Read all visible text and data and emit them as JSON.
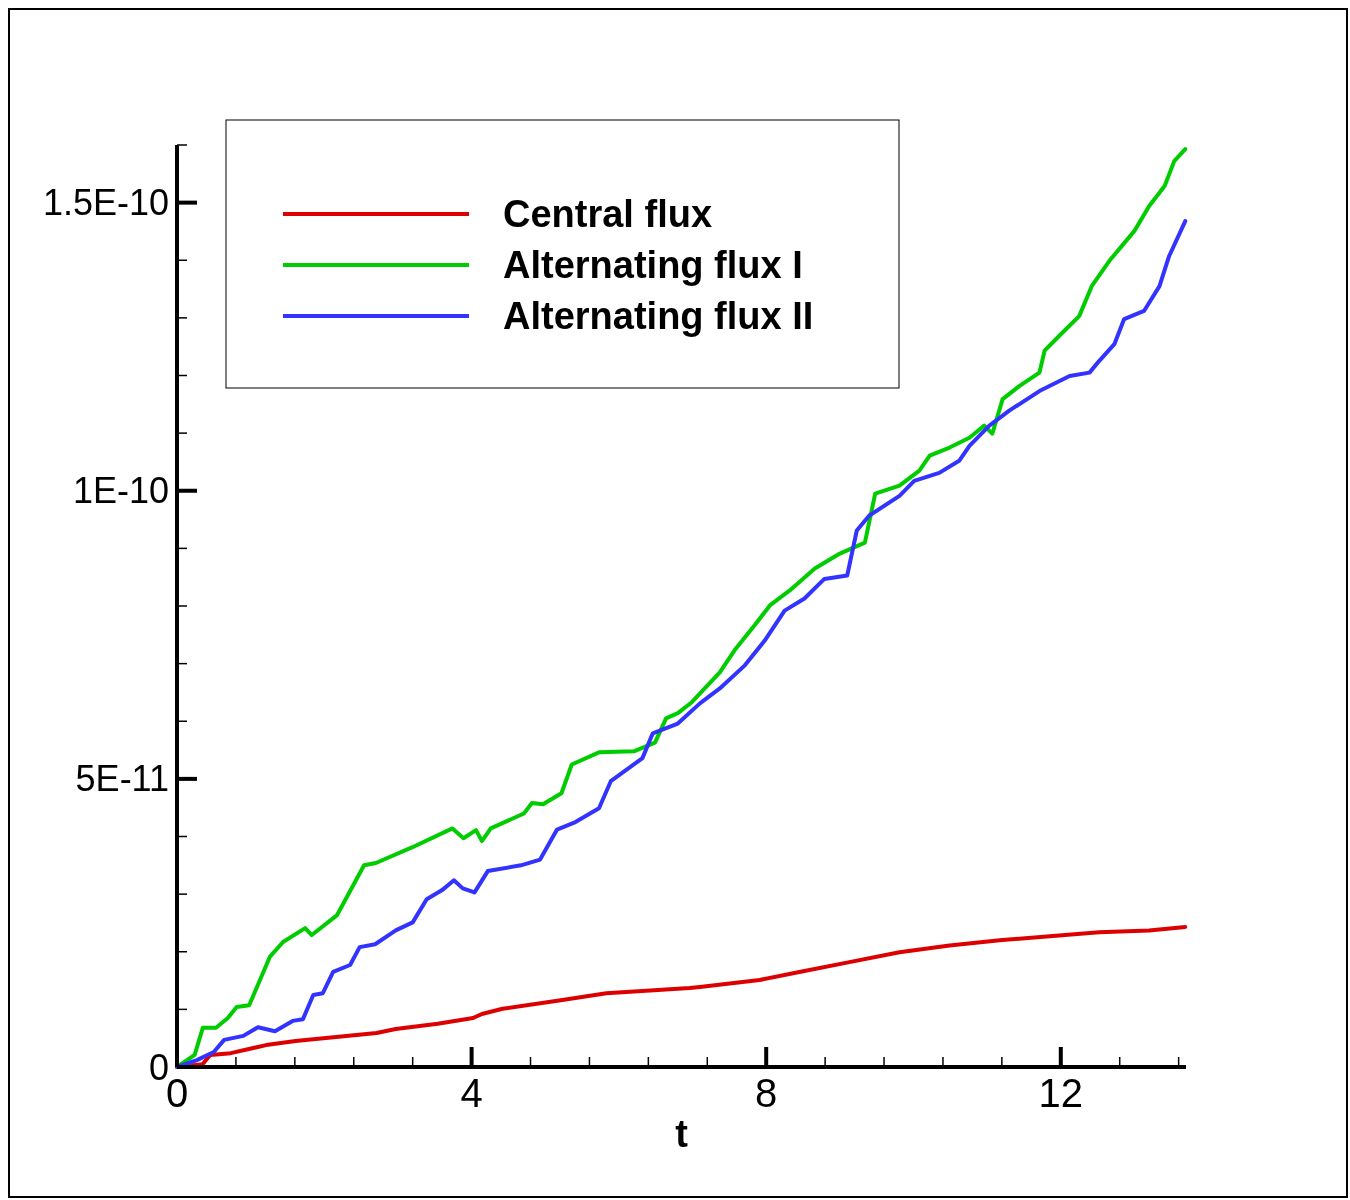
{
  "chart_data": {
    "type": "line",
    "xlabel": "t",
    "legend": "top left",
    "grid": false,
    "line_style": "solid",
    "xlim": [
      0,
      13.7
    ],
    "ylim": [
      0,
      1.6e-10
    ],
    "xticks": [
      0,
      {
        "value": 0.8,
        "label": null
      },
      {
        "value": 1.6,
        "label": null
      },
      {
        "value": 2.4,
        "label": null
      },
      {
        "value": 3.2,
        "label": null
      },
      4,
      {
        "value": 4.8,
        "label": null
      },
      {
        "value": 5.6,
        "label": null
      },
      {
        "value": 6.4,
        "label": null
      },
      {
        "value": 7.2,
        "label": null
      },
      8,
      {
        "value": 8.8,
        "label": null
      },
      {
        "value": 9.6,
        "label": null
      },
      {
        "value": 10.4,
        "label": null
      },
      {
        "value": 11.2,
        "label": null
      },
      12,
      {
        "value": 12.8,
        "label": null
      },
      {
        "value": 13.6,
        "label": null
      }
    ],
    "yticks": [
      0,
      {
        "value": 1e-11,
        "label": null
      },
      {
        "value": 2e-11,
        "label": null
      },
      {
        "value": 3e-11,
        "label": null
      },
      {
        "value": 4e-11,
        "label": null
      },
      {
        "value": 5e-11,
        "label": "5E-11"
      },
      {
        "value": 6e-11,
        "label": null
      },
      {
        "value": 7e-11,
        "label": null
      },
      {
        "value": 8e-11,
        "label": null
      },
      {
        "value": 9e-11,
        "label": null
      },
      {
        "value": 1e-10,
        "label": "1E-10"
      },
      {
        "value": 1.1e-10,
        "label": null
      },
      {
        "value": 1.2e-10,
        "label": null
      },
      {
        "value": 1.3e-10,
        "label": null
      },
      {
        "value": 1.4e-10,
        "label": null
      },
      {
        "value": 1.5e-10,
        "label": "1.5E-10"
      },
      {
        "value": 1.6e-10,
        "label": null
      }
    ],
    "series": [
      {
        "name": "Central flux",
        "color": "#dd0000",
        "x": [
          0,
          0.35,
          0.45,
          0.73,
          1.21,
          1.61,
          2.71,
          2.97,
          3.54,
          4.02,
          4.14,
          4.42,
          5.21,
          5.83,
          6.96,
          7.1,
          7.91,
          8.45,
          9.13,
          9.81,
          10.49,
          11.17,
          11.85,
          12.52,
          13.2,
          13.69
        ],
        "values": [
          0,
          5e-13,
          2.1e-12,
          2.4e-12,
          3.8e-12,
          4.5e-12,
          5.9e-12,
          6.6e-12,
          7.5e-12,
          8.5e-12,
          9.2e-12,
          1.01e-11,
          1.16e-11,
          1.28e-11,
          1.37e-11,
          1.39e-11,
          1.51e-11,
          1.65e-11,
          1.82e-11,
          1.99e-11,
          2.11e-11,
          2.2e-11,
          2.27e-11,
          2.34e-11,
          2.37e-11,
          2.43e-11
        ]
      },
      {
        "name": "Alternating flux I",
        "color": "#00cc00",
        "x": [
          0,
          0.24,
          0.35,
          0.53,
          0.69,
          0.81,
          0.98,
          1.26,
          1.44,
          1.74,
          1.83,
          2.17,
          2.54,
          2.7,
          3.19,
          3.74,
          3.89,
          4.06,
          4.14,
          4.26,
          4.71,
          4.82,
          4.97,
          5.22,
          5.36,
          5.73,
          6.21,
          6.49,
          6.64,
          6.8,
          6.99,
          7.37,
          7.57,
          7.84,
          8.05,
          8.32,
          8.66,
          9.0,
          9.34,
          9.48,
          9.81,
          10.08,
          10.22,
          10.49,
          10.76,
          10.96,
          11.07,
          11.21,
          11.44,
          11.71,
          11.78,
          11.98,
          12.25,
          12.42,
          12.66,
          13.0,
          13.2,
          13.41,
          13.54,
          13.69
        ],
        "values": [
          0,
          2.1e-12,
          6.8e-12,
          6.8e-12,
          8.5e-12,
          1.04e-11,
          1.07e-11,
          1.91e-11,
          2.17e-11,
          2.41e-11,
          2.29e-11,
          2.63e-11,
          3.5e-11,
          3.54e-11,
          3.81e-11,
          4.14e-11,
          3.97e-11,
          4.11e-11,
          3.92e-11,
          4.14e-11,
          4.4e-11,
          4.58e-11,
          4.56e-11,
          4.75e-11,
          5.25e-11,
          5.46e-11,
          5.48e-11,
          5.63e-11,
          6.05e-11,
          6.14e-11,
          6.33e-11,
          6.85e-11,
          7.23e-11,
          7.66e-11,
          8.01e-11,
          8.27e-11,
          8.65e-11,
          8.91e-11,
          9.1e-11,
          9.95e-11,
          1.009e-10,
          1.035e-10,
          1.061e-10,
          1.075e-10,
          1.092e-10,
          1.113e-10,
          1.099e-10,
          1.159e-10,
          1.182e-10,
          1.205e-10,
          1.243e-10,
          1.269e-10,
          1.303e-10,
          1.355e-10,
          1.399e-10,
          1.451e-10,
          1.494e-10,
          1.529e-10,
          1.572e-10,
          1.593e-10
        ]
      },
      {
        "name": "Alternating flux II",
        "color": "#3333ff",
        "x": [
          0,
          0.27,
          0.5,
          0.64,
          0.9,
          1.1,
          1.33,
          1.57,
          1.71,
          1.85,
          1.98,
          2.12,
          2.35,
          2.48,
          2.69,
          2.97,
          3.2,
          3.39,
          3.6,
          3.76,
          3.88,
          4.04,
          4.22,
          4.67,
          4.93,
          5.16,
          5.41,
          5.73,
          5.89,
          6.32,
          6.46,
          6.8,
          7.1,
          7.37,
          7.71,
          7.98,
          8.25,
          8.52,
          8.79,
          9.1,
          9.23,
          9.4,
          9.81,
          10.01,
          10.35,
          10.62,
          10.76,
          11.03,
          11.3,
          11.71,
          12.12,
          12.39,
          12.52,
          12.73,
          12.86,
          13.13,
          13.34,
          13.47,
          13.69
        ],
        "values": [
          0,
          1.2e-12,
          2.6e-12,
          4.7e-12,
          5.4e-12,
          6.9e-12,
          6.2e-12,
          8e-12,
          8.3e-12,
          1.25e-11,
          1.28e-11,
          1.65e-11,
          1.77e-11,
          2.08e-11,
          2.13e-11,
          2.37e-11,
          2.51e-11,
          2.91e-11,
          3.07e-11,
          3.24e-11,
          3.1e-11,
          3.03e-11,
          3.4e-11,
          3.5e-11,
          3.6e-11,
          4.12e-11,
          4.25e-11,
          4.49e-11,
          4.96e-11,
          5.36e-11,
          5.79e-11,
          5.96e-11,
          6.31e-11,
          6.57e-11,
          6.97e-11,
          7.4e-11,
          7.92e-11,
          8.13e-11,
          8.47e-11,
          8.53e-11,
          9.31e-11,
          9.57e-11,
          9.91e-11,
          1.017e-10,
          1.031e-10,
          1.052e-10,
          1.078e-10,
          1.113e-10,
          1.139e-10,
          1.173e-10,
          1.199e-10,
          1.205e-10,
          1.225e-10,
          1.255e-10,
          1.298e-10,
          1.312e-10,
          1.355e-10,
          1.407e-10,
          1.468e-10
        ]
      }
    ]
  }
}
